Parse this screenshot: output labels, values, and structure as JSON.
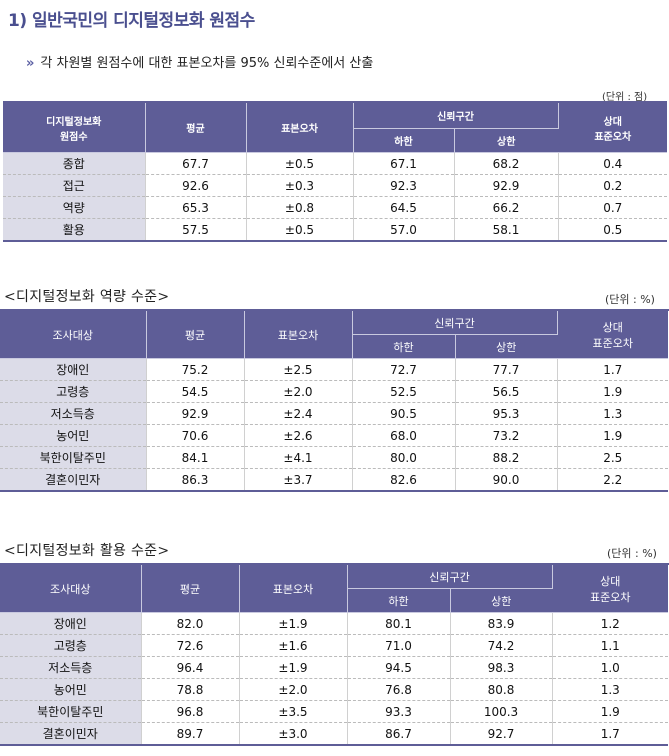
{
  "title": "1) 일반국민의 디지털정보화 원점수",
  "subtitle_arrow": "»",
  "subtitle": "각 차원별 원점수에 대한 표본오차를 95% 신뢰수준에서 산출",
  "table1": {
    "unit": "(단위 : 점)",
    "headers": {
      "row_label": "디지털정보화\n원점수",
      "mean": "평균",
      "se": "표본오차",
      "ci": "신뢰구간",
      "lower": "하한",
      "upper": "상한",
      "rse": "상대\n표준오차"
    },
    "rows": [
      {
        "label": "종합",
        "mean": "67.7",
        "se": "±0.5",
        "lower": "67.1",
        "upper": "68.2",
        "rse": "0.4"
      },
      {
        "label": "접근",
        "mean": "92.6",
        "se": "±0.3",
        "lower": "92.3",
        "upper": "92.9",
        "rse": "0.2"
      },
      {
        "label": "역량",
        "mean": "65.3",
        "se": "±0.8",
        "lower": "64.5",
        "upper": "66.2",
        "rse": "0.7"
      },
      {
        "label": "활용",
        "mean": "57.5",
        "se": "±0.5",
        "lower": "57.0",
        "upper": "58.1",
        "rse": "0.5"
      }
    ]
  },
  "table2": {
    "section_title": "<디지털정보화 역량 수준>",
    "unit": "(단위 : %)",
    "headers": {
      "row_label": "조사대상",
      "mean": "평균",
      "se": "표본오차",
      "ci": "신뢰구간",
      "lower": "하한",
      "upper": "상한",
      "rse": "상대\n표준오차"
    },
    "rows": [
      {
        "label": "장애인",
        "mean": "75.2",
        "se": "±2.5",
        "lower": "72.7",
        "upper": "77.7",
        "rse": "1.7"
      },
      {
        "label": "고령층",
        "mean": "54.5",
        "se": "±2.0",
        "lower": "52.5",
        "upper": "56.5",
        "rse": "1.9"
      },
      {
        "label": "저소득층",
        "mean": "92.9",
        "se": "±2.4",
        "lower": "90.5",
        "upper": "95.3",
        "rse": "1.3"
      },
      {
        "label": "농어민",
        "mean": "70.6",
        "se": "±2.6",
        "lower": "68.0",
        "upper": "73.2",
        "rse": "1.9"
      },
      {
        "label": "북한이탈주민",
        "mean": "84.1",
        "se": "±4.1",
        "lower": "80.0",
        "upper": "88.2",
        "rse": "2.5"
      },
      {
        "label": "결혼이민자",
        "mean": "86.3",
        "se": "±3.7",
        "lower": "82.6",
        "upper": "90.0",
        "rse": "2.2"
      }
    ]
  },
  "table3": {
    "section_title": "<디지털정보화 활용 수준>",
    "unit": "(단위 : %)",
    "headers": {
      "row_label": "조사대상",
      "mean": "평균",
      "se": "표본오차",
      "ci": "신뢰구간",
      "lower": "하한",
      "upper": "상한",
      "rse": "상대\n표준오차"
    },
    "rows": [
      {
        "label": "장애인",
        "mean": "82.0",
        "se": "±1.9",
        "lower": "80.1",
        "upper": "83.9",
        "rse": "1.2"
      },
      {
        "label": "고령층",
        "mean": "72.6",
        "se": "±1.6",
        "lower": "71.0",
        "upper": "74.2",
        "rse": "1.1"
      },
      {
        "label": "저소득층",
        "mean": "96.4",
        "se": "±1.9",
        "lower": "94.5",
        "upper": "98.3",
        "rse": "1.0"
      },
      {
        "label": "농어민",
        "mean": "78.8",
        "se": "±2.0",
        "lower": "76.8",
        "upper": "80.8",
        "rse": "1.3"
      },
      {
        "label": "북한이탈주민",
        "mean": "96.8",
        "se": "±3.5",
        "lower": "93.3",
        "upper": "100.3",
        "rse": "1.9"
      },
      {
        "label": "결혼이민자",
        "mean": "89.7",
        "se": "±3.0",
        "lower": "86.7",
        "upper": "92.7",
        "rse": "1.7"
      }
    ]
  }
}
